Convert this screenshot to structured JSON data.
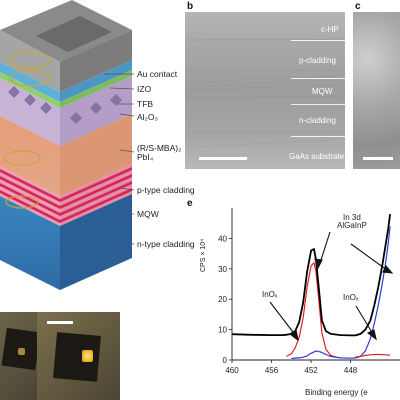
{
  "panel_a": {
    "layer_labels": [
      {
        "lines": [
          "Au contact"
        ]
      },
      {
        "lines": [
          "IZO"
        ]
      },
      {
        "lines": [
          "TFB"
        ]
      },
      {
        "lines": [
          "Al₂O₃"
        ]
      },
      {
        "lines": [
          "(R/S-MBA)₂",
          "PbI₄"
        ]
      },
      {
        "lines": [
          "p-type cladding"
        ]
      },
      {
        "lines": [
          "MQW"
        ]
      },
      {
        "lines": [
          "n-type cladding"
        ]
      }
    ]
  },
  "panel_b": {
    "letter": "b",
    "layers": [
      "c-HP",
      "p-cladding",
      "MQW",
      "n-cladding",
      "GaAs substrate"
    ]
  },
  "panel_c": {
    "letter": "c"
  },
  "panel_e": {
    "letter": "e",
    "annotations": {
      "in3d_line1": "In 3d",
      "in3d_line2": "AlGaInP",
      "inox_left": "InOₓ",
      "inox_right": "InOₓ"
    }
  },
  "chart_data": {
    "type": "line",
    "xlabel": "Binding energy (e",
    "ylabel": "CPS × 10⁴",
    "xlim": [
      460,
      443
    ],
    "ylim": [
      0,
      50
    ],
    "x_ticks": [
      460,
      456,
      452,
      448
    ],
    "y_ticks": [
      0,
      10,
      20,
      30,
      40
    ],
    "series": [
      {
        "color": "#000000",
        "x": [
          460,
          458,
          456,
          455,
          454.5,
          454,
          453.6,
          453.2,
          452.8,
          452.4,
          452.0,
          451.7,
          451.5,
          451.2,
          450.9,
          450.5,
          450,
          449,
          448,
          447.5,
          447,
          446.5,
          446,
          445.6,
          445.2,
          444.8,
          444.5,
          444.2,
          444
        ],
        "y": [
          8.5,
          8.3,
          8.2,
          8.2,
          8.3,
          8.6,
          9.5,
          12.5,
          19,
          29,
          36,
          36.5,
          33,
          23,
          13,
          9.5,
          8.6,
          8.2,
          8.1,
          8.1,
          8.6,
          10,
          13,
          18,
          24,
          31,
          37,
          43,
          48
        ]
      },
      {
        "color": "#e02020",
        "x": [
          454.5,
          454,
          453.6,
          453.2,
          452.8,
          452.4,
          452.0,
          451.7,
          451.5,
          451.2,
          450.9,
          450.5,
          450,
          449.5
        ],
        "y": [
          1.2,
          2,
          4,
          7.5,
          14,
          24,
          31,
          32,
          29,
          19,
          9,
          3.5,
          1.5,
          1
        ]
      },
      {
        "color": "#2a3cd8",
        "x": [
          454,
          453,
          452.5,
          452,
          451.5,
          451,
          450.5,
          450,
          449,
          448,
          447.5,
          447,
          446.5,
          446,
          445.6,
          445.2,
          444.8,
          444.5,
          444.2,
          444
        ],
        "y": [
          0.5,
          0.8,
          1.2,
          2.2,
          3,
          2.6,
          1.8,
          1.2,
          0.7,
          0.6,
          0.7,
          1.2,
          3,
          7,
          12,
          18,
          25,
          31,
          38,
          44
        ]
      },
      {
        "color": "#e02020",
        "x": [
          447.5,
          447,
          446.5,
          446,
          445.5,
          445,
          444.5,
          444
        ],
        "y": [
          1,
          1.2,
          1.5,
          1.7,
          1.8,
          1.8,
          1.7,
          1.6
        ]
      }
    ]
  }
}
